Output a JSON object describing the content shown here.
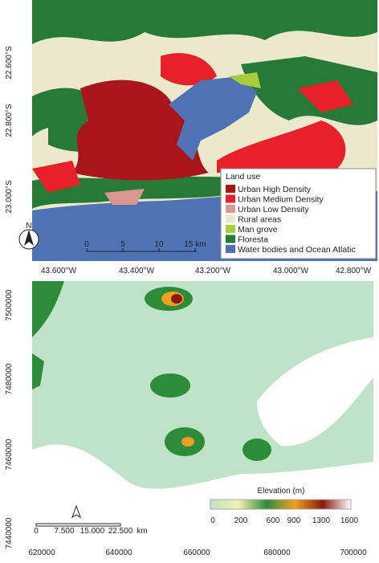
{
  "top_map": {
    "y_labels": [
      "22.600°S",
      "22.800°S",
      "23.000°S"
    ],
    "x_labels": [
      "43.600°W",
      "43.400°W",
      "43.200°W",
      "43.000°W",
      "42.800°W"
    ],
    "legend": {
      "title": "Land use",
      "items": [
        {
          "label": "Urban High Density",
          "color": "#a8161c"
        },
        {
          "label": "Urban Medium Density",
          "color": "#e8202a"
        },
        {
          "label": "Urban Low Density",
          "color": "#d9978f"
        },
        {
          "label": "Rural areas",
          "color": "#ece8cc"
        },
        {
          "label": "Man grove",
          "color": "#a6cd3a"
        },
        {
          "label": "Floresta",
          "color": "#267a36"
        },
        {
          "label": "Water bodies and Ocean Atlatic",
          "color": "#4e72b4"
        }
      ]
    },
    "scale_bar": [
      "0",
      "5",
      "10",
      "15 km"
    ],
    "north": "N"
  },
  "bottom_map": {
    "y_labels": [
      "7500000",
      "7480000",
      "7460000",
      "7440000"
    ],
    "x_labels": [
      "620000",
      "640000",
      "660000",
      "680000",
      "700000"
    ],
    "legend": {
      "title": "Elevation (m)",
      "ticks": [
        "0",
        "200",
        "600",
        "900",
        "1300",
        "1600"
      ],
      "colors": [
        "#bfe3c6",
        "#f2f0b4",
        "#2e8b3a",
        "#f0a020",
        "#8b1a10",
        "#ffffff"
      ]
    },
    "scale_bar": [
      "0",
      "7.500",
      "15.000",
      "22.500",
      "km"
    ]
  }
}
